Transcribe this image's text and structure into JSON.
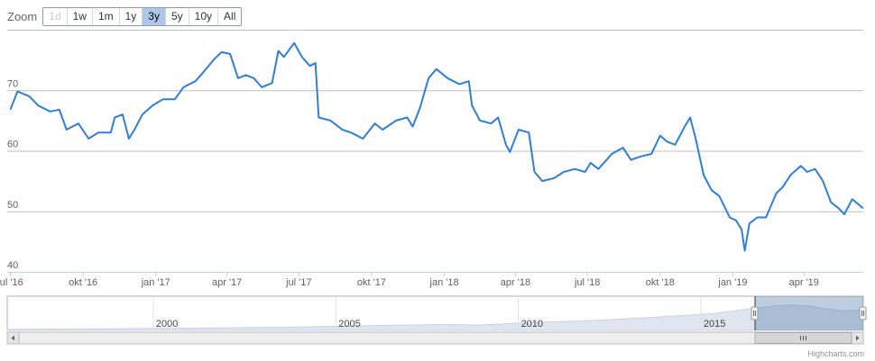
{
  "range_selector": {
    "label": "Zoom",
    "buttons": [
      {
        "label": "1d",
        "state": "disabled"
      },
      {
        "label": "1w",
        "state": "normal"
      },
      {
        "label": "1m",
        "state": "normal"
      },
      {
        "label": "1y",
        "state": "normal"
      },
      {
        "label": "3y",
        "state": "selected"
      },
      {
        "label": "5y",
        "state": "normal"
      },
      {
        "label": "10y",
        "state": "normal"
      },
      {
        "label": "All",
        "state": "normal"
      }
    ]
  },
  "chart_data": {
    "type": "line",
    "title": "",
    "series": [
      {
        "color": "#2f7ed8",
        "points": [
          [
            "2016-07-01",
            66.8
          ],
          [
            "2016-07-10",
            69.8
          ],
          [
            "2016-07-25",
            69.0
          ],
          [
            "2016-08-05",
            67.5
          ],
          [
            "2016-08-20",
            66.5
          ],
          [
            "2016-09-01",
            66.8
          ],
          [
            "2016-09-10",
            63.5
          ],
          [
            "2016-09-25",
            64.5
          ],
          [
            "2016-10-08",
            62.0
          ],
          [
            "2016-10-20",
            63.0
          ],
          [
            "2016-11-05",
            63.0
          ],
          [
            "2016-11-10",
            65.5
          ],
          [
            "2016-11-20",
            66.0
          ],
          [
            "2016-11-28",
            62.0
          ],
          [
            "2016-12-05",
            63.5
          ],
          [
            "2016-12-15",
            66.0
          ],
          [
            "2016-12-28",
            67.5
          ],
          [
            "2017-01-10",
            68.5
          ],
          [
            "2017-01-25",
            68.5
          ],
          [
            "2017-02-05",
            70.5
          ],
          [
            "2017-02-20",
            71.5
          ],
          [
            "2017-03-01",
            72.8
          ],
          [
            "2017-03-15",
            75.0
          ],
          [
            "2017-03-25",
            76.3
          ],
          [
            "2017-04-05",
            76.0
          ],
          [
            "2017-04-15",
            72.0
          ],
          [
            "2017-04-25",
            72.5
          ],
          [
            "2017-05-05",
            72.0
          ],
          [
            "2017-05-15",
            70.5
          ],
          [
            "2017-05-28",
            71.2
          ],
          [
            "2017-06-05",
            76.5
          ],
          [
            "2017-06-12",
            75.5
          ],
          [
            "2017-06-25",
            77.8
          ],
          [
            "2017-07-05",
            75.5
          ],
          [
            "2017-07-15",
            74.0
          ],
          [
            "2017-07-22",
            74.5
          ],
          [
            "2017-07-26",
            65.5
          ],
          [
            "2017-08-10",
            65.0
          ],
          [
            "2017-08-25",
            63.5
          ],
          [
            "2017-09-05",
            63.0
          ],
          [
            "2017-09-20",
            62.0
          ],
          [
            "2017-10-05",
            64.5
          ],
          [
            "2017-10-15",
            63.5
          ],
          [
            "2017-11-01",
            65.0
          ],
          [
            "2017-11-15",
            65.5
          ],
          [
            "2017-11-22",
            64.0
          ],
          [
            "2017-12-01",
            67.0
          ],
          [
            "2017-12-12",
            72.0
          ],
          [
            "2017-12-22",
            73.5
          ],
          [
            "2018-01-05",
            72.0
          ],
          [
            "2018-01-20",
            71.0
          ],
          [
            "2018-02-01",
            71.5
          ],
          [
            "2018-02-05",
            67.5
          ],
          [
            "2018-02-15",
            65.0
          ],
          [
            "2018-03-01",
            64.5
          ],
          [
            "2018-03-10",
            65.5
          ],
          [
            "2018-03-20",
            61.0
          ],
          [
            "2018-03-25",
            59.8
          ],
          [
            "2018-04-05",
            63.5
          ],
          [
            "2018-04-18",
            63.0
          ],
          [
            "2018-04-25",
            56.5
          ],
          [
            "2018-05-05",
            55.0
          ],
          [
            "2018-05-20",
            55.5
          ],
          [
            "2018-06-01",
            56.5
          ],
          [
            "2018-06-15",
            57.0
          ],
          [
            "2018-06-28",
            56.5
          ],
          [
            "2018-07-05",
            58.0
          ],
          [
            "2018-07-15",
            57.0
          ],
          [
            "2018-08-01",
            59.5
          ],
          [
            "2018-08-15",
            60.5
          ],
          [
            "2018-08-25",
            58.5
          ],
          [
            "2018-09-05",
            59.0
          ],
          [
            "2018-09-20",
            59.5
          ],
          [
            "2018-10-01",
            62.5
          ],
          [
            "2018-10-10",
            61.5
          ],
          [
            "2018-10-20",
            61.0
          ],
          [
            "2018-11-01",
            64.0
          ],
          [
            "2018-11-08",
            65.5
          ],
          [
            "2018-11-15",
            62.0
          ],
          [
            "2018-11-25",
            56.0
          ],
          [
            "2018-12-05",
            53.5
          ],
          [
            "2018-12-15",
            52.5
          ],
          [
            "2018-12-28",
            49.0
          ],
          [
            "2019-01-05",
            48.5
          ],
          [
            "2019-01-12",
            47.0
          ],
          [
            "2019-01-16",
            43.5
          ],
          [
            "2019-01-22",
            48.0
          ],
          [
            "2019-02-01",
            49.0
          ],
          [
            "2019-02-12",
            49.0
          ],
          [
            "2019-02-25",
            53.0
          ],
          [
            "2019-03-05",
            54.0
          ],
          [
            "2019-03-15",
            56.0
          ],
          [
            "2019-03-28",
            57.5
          ],
          [
            "2019-04-05",
            56.5
          ],
          [
            "2019-04-15",
            57.0
          ],
          [
            "2019-04-25",
            55.0
          ],
          [
            "2019-05-05",
            51.5
          ],
          [
            "2019-05-15",
            50.5
          ],
          [
            "2019-05-22",
            49.5
          ],
          [
            "2019-06-01",
            52.0
          ],
          [
            "2019-06-15",
            50.5
          ]
        ]
      }
    ],
    "x_range": [
      "2016-06-27",
      "2019-06-15"
    ],
    "ylim": [
      40,
      80
    ],
    "y_ticks": [
      40,
      50,
      60,
      70
    ],
    "x_ticks": [
      {
        "date": "2016-07-01",
        "label": "jul '16"
      },
      {
        "date": "2016-10-01",
        "label": "okt '16"
      },
      {
        "date": "2017-01-01",
        "label": "jan '17"
      },
      {
        "date": "2017-04-01",
        "label": "apr '17"
      },
      {
        "date": "2017-07-01",
        "label": "jul '17"
      },
      {
        "date": "2017-10-01",
        "label": "okt '17"
      },
      {
        "date": "2018-01-01",
        "label": "jan '18"
      },
      {
        "date": "2018-04-01",
        "label": "apr '18"
      },
      {
        "date": "2018-07-01",
        "label": "jul '18"
      },
      {
        "date": "2018-10-01",
        "label": "okt '18"
      },
      {
        "date": "2019-01-01",
        "label": "jan '19"
      },
      {
        "date": "2019-04-01",
        "label": "apr '19"
      }
    ],
    "grid": true,
    "navigator": {
      "years": [
        "2000",
        "2005",
        "2010",
        "2015"
      ],
      "range": [
        "1996-01-01",
        "2019-06-15"
      ],
      "selected": [
        "2016-06-27",
        "2019-06-15"
      ],
      "series": [
        [
          "1996-01-01",
          2
        ],
        [
          "1998-01-01",
          3
        ],
        [
          "2000-01-01",
          4
        ],
        [
          "2002-01-01",
          5
        ],
        [
          "2004-01-01",
          7
        ],
        [
          "2006-01-01",
          10
        ],
        [
          "2008-01-01",
          12
        ],
        [
          "2009-01-01",
          11
        ],
        [
          "2010-01-01",
          15
        ],
        [
          "2012-01-01",
          20
        ],
        [
          "2014-01-01",
          28
        ],
        [
          "2015-06-01",
          35
        ],
        [
          "2016-06-01",
          45
        ],
        [
          "2017-01-01",
          50
        ],
        [
          "2017-06-01",
          52
        ],
        [
          "2018-01-01",
          50
        ],
        [
          "2018-06-01",
          44
        ],
        [
          "2019-01-01",
          40
        ],
        [
          "2019-06-01",
          42
        ]
      ]
    }
  },
  "credits": "Highcharts.com"
}
